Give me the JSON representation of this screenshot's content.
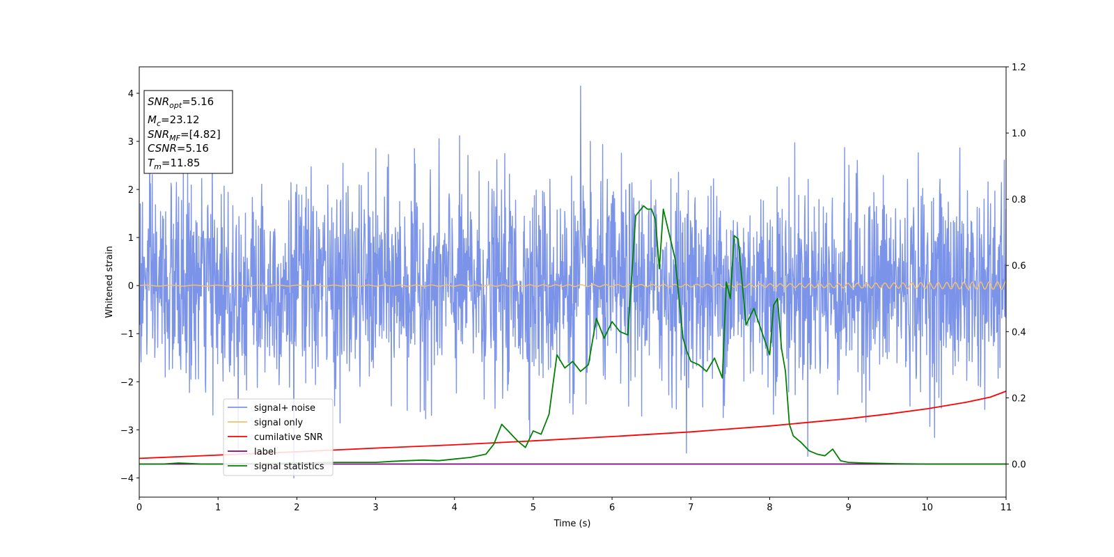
{
  "chart_data": {
    "type": "line",
    "xlabel": "Time (s)",
    "ylabel": "Whitened strain",
    "xlim": [
      0,
      11
    ],
    "ylim": [
      -4.4,
      4.55
    ],
    "y2lim": [
      -0.1,
      1.2
    ],
    "x_ticks": [
      "0",
      "1",
      "2",
      "3",
      "4",
      "5",
      "6",
      "7",
      "8",
      "9",
      "10",
      "11"
    ],
    "y_ticks": [
      "4",
      "3",
      "2",
      "1",
      "0",
      "−1",
      "−2",
      "−3",
      "−4"
    ],
    "y2_ticks": [
      "1.2",
      "1.0",
      "0.8",
      "0.6",
      "0.4",
      "0.2",
      "0.0"
    ],
    "grid": false,
    "legend_position": "lower-left",
    "info_box": {
      "snr_opt": {
        "base": "SNR",
        "sub": "opt",
        "value": "=5.16"
      },
      "mc": {
        "base": "M",
        "sub": "c",
        "value": "=23.12"
      },
      "snr_mf": {
        "base": "SNR",
        "sub": "MF",
        "value": "=[4.82]"
      },
      "csnr": {
        "base": "CSNR",
        "sub": "",
        "value": "=5.16"
      },
      "tm": {
        "base": "T",
        "sub": "m",
        "value": "=11.85"
      }
    },
    "series": [
      {
        "name": "signal+ noise",
        "color": "#7b93e8",
        "axis": "left",
        "noise_band": {
          "x_start": 0,
          "x_end": 11,
          "core_low": -1.5,
          "core_high": 1.5,
          "peak_max": 4.15,
          "peak_min": -4.0,
          "peak_max_x": 5.6,
          "peak_min_x": 1.96
        }
      },
      {
        "name": "signal only",
        "color": "#f5c06a",
        "axis": "left",
        "amplitude_start": 0.01,
        "amplitude_end": 0.08,
        "x_start": 0,
        "x_end": 11
      },
      {
        "name": "cumilative SNR",
        "color": "#ff0000",
        "axis": "right",
        "x": [
          0,
          1,
          2,
          3,
          4,
          5,
          6,
          7,
          8,
          9,
          9.5,
          10,
          10.5,
          10.8,
          11
        ],
        "y": [
          0.017,
          0.027,
          0.037,
          0.048,
          0.058,
          0.07,
          0.083,
          0.097,
          0.115,
          0.137,
          0.151,
          0.167,
          0.187,
          0.202,
          0.22
        ]
      },
      {
        "name": "label",
        "color": "#800080",
        "axis": "right",
        "x": [
          0,
          11
        ],
        "y": [
          0,
          0
        ]
      },
      {
        "name": "signal statistics",
        "color": "#008000",
        "axis": "right",
        "x": [
          0,
          0.3,
          0.5,
          0.8,
          1,
          1.5,
          2,
          2.5,
          3,
          3.2,
          3.4,
          3.6,
          3.8,
          4,
          4.2,
          4.3,
          4.4,
          4.5,
          4.6,
          4.7,
          4.8,
          4.9,
          5,
          5.1,
          5.2,
          5.3,
          5.4,
          5.5,
          5.6,
          5.7,
          5.8,
          5.9,
          6,
          6.1,
          6.2,
          6.3,
          6.4,
          6.45,
          6.5,
          6.55,
          6.6,
          6.65,
          6.7,
          6.75,
          6.8,
          6.9,
          6.95,
          7,
          7.1,
          7.2,
          7.3,
          7.4,
          7.45,
          7.5,
          7.55,
          7.6,
          7.7,
          7.8,
          7.9,
          8,
          8.05,
          8.1,
          8.15,
          8.2,
          8.25,
          8.3,
          8.4,
          8.5,
          8.6,
          8.7,
          8.8,
          8.9,
          9,
          9.2,
          9.4,
          9.6,
          10,
          11
        ],
        "y": [
          0.0,
          0.0,
          0.003,
          0.0,
          0.0,
          0.001,
          0.003,
          0.005,
          0.005,
          0.008,
          0.01,
          0.012,
          0.01,
          0.015,
          0.02,
          0.025,
          0.03,
          0.06,
          0.12,
          0.095,
          0.07,
          0.05,
          0.1,
          0.09,
          0.15,
          0.33,
          0.29,
          0.31,
          0.28,
          0.3,
          0.44,
          0.38,
          0.43,
          0.4,
          0.39,
          0.75,
          0.78,
          0.77,
          0.77,
          0.74,
          0.59,
          0.77,
          0.72,
          0.67,
          0.62,
          0.38,
          0.34,
          0.31,
          0.3,
          0.28,
          0.32,
          0.26,
          0.55,
          0.5,
          0.69,
          0.68,
          0.42,
          0.47,
          0.4,
          0.33,
          0.48,
          0.5,
          0.35,
          0.28,
          0.12,
          0.085,
          0.065,
          0.04,
          0.03,
          0.025,
          0.045,
          0.01,
          0.005,
          0.003,
          0.002,
          0.001,
          0.0,
          0.0
        ]
      }
    ]
  }
}
